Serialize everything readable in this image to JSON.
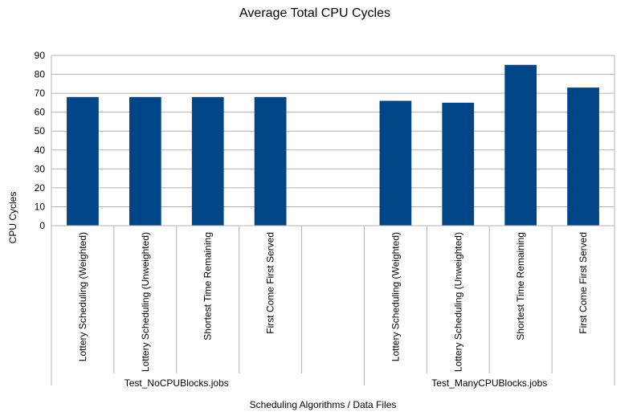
{
  "chart_data": {
    "type": "bar",
    "title": "Average Total CPU Cycles",
    "ylabel": "CPU Cycles",
    "xlabel": "Scheduling Algorithms / Data Files",
    "ylim": [
      0,
      90
    ],
    "yticks": [
      0,
      10,
      20,
      30,
      40,
      50,
      60,
      70,
      80,
      90
    ],
    "grid": true,
    "bar_color": "#004586",
    "groups": [
      {
        "name": "Test_NoCPUBlocks.jobs",
        "categories": [
          "Lottery Scheduling (Weighted)",
          "Lottery Scheduling (Unweighted)",
          "Shortest Time Remaining",
          "First Come First Served"
        ],
        "values": [
          68,
          68,
          68,
          68
        ]
      },
      {
        "name": "Test_ManyCPUBlocks.jobs",
        "categories": [
          "Lottery Scheduling (Weighted)",
          "Lottery Scheduling (Unweighted)",
          "Shortest Time Remaining",
          "First Come First Served"
        ],
        "values": [
          66,
          65,
          85,
          73
        ]
      }
    ]
  }
}
